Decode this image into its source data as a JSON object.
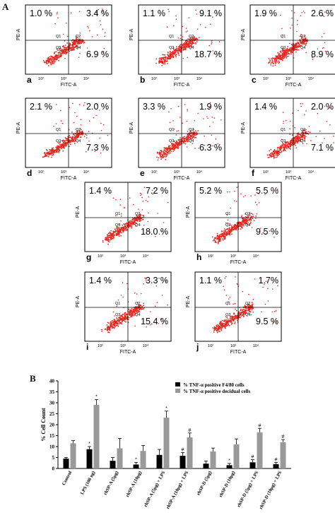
{
  "figure_labels": {
    "a": "A",
    "b": "B"
  },
  "flow_axes": {
    "x_label": "FITC-A",
    "y_label": "PE-A",
    "quadrants": [
      "Q1",
      "Q2",
      "Q3",
      "Q4"
    ]
  },
  "panels": [
    {
      "letter": "a",
      "q1": "1.0 %",
      "q2": "3.4 %",
      "q4": "6.9 %"
    },
    {
      "letter": "b",
      "q1": "1.1 %",
      "q2": "9.1 %",
      "q4": "18.7 %"
    },
    {
      "letter": "c",
      "q1": "1.9 %",
      "q2": "2.6 %",
      "q4": "8.9 %"
    },
    {
      "letter": "d",
      "q1": "2.1 %",
      "q2": "2.0 %",
      "q4": "7.3 %"
    },
    {
      "letter": "e",
      "q1": "3.3 %",
      "q2": "1.9 %",
      "q4": "6.3 %"
    },
    {
      "letter": "f",
      "q1": "1.4 %",
      "q2": "2.0 %",
      "q4": "7.1 %"
    },
    {
      "letter": "g",
      "q1": "1.4 %",
      "q2": "7.2 %",
      "q4": "18.0 %"
    },
    {
      "letter": "h",
      "q1": "5.2 %",
      "q2": "5.5 %",
      "q4": "9.5 %"
    },
    {
      "letter": "i",
      "q1": "1.4 %",
      "q2": "3.3 %",
      "q4": "15.4 %"
    },
    {
      "letter": "j",
      "q1": "1.1 %",
      "q2": "1.7%",
      "q4": "9.5 %"
    }
  ],
  "chart_data": {
    "type": "bar",
    "title": "",
    "xlabel": "",
    "ylabel": "% Cell Count",
    "ylim": [
      0,
      40
    ],
    "yticks": [
      0,
      5,
      10,
      15,
      20,
      25,
      30,
      35,
      40
    ],
    "categories": [
      "Control",
      "LPS (100 ng)",
      "rhSP-A (5µg)",
      "rhSP-A (10µg)",
      "rhSP-A (5µg) + LPS",
      "rhSP-A (10µg) + LPS",
      "rhSP-D (5µg)",
      "rhSP-D (10µg)",
      "rhSP-D (5µg) + LPS",
      "rhSP-D (10µg) + LPS"
    ],
    "series": [
      {
        "name": "% TNF-α positive F4/80 cells",
        "color": "#000000",
        "values": [
          4.5,
          8.8,
          3.5,
          1.8,
          6.2,
          5.8,
          2.2,
          1.5,
          2.8,
          2.0
        ],
        "errors": [
          0.5,
          1.2,
          1.5,
          1.0,
          2.5,
          1.5,
          1.2,
          0.8,
          1.2,
          0.8
        ],
        "annotations": [
          "",
          "*",
          "",
          "*",
          "",
          "#",
          "",
          "*",
          "#",
          "#"
        ]
      },
      {
        "name": "% TNF-α positive decidual cells",
        "color": "#999999",
        "values": [
          11.5,
          29.0,
          9.2,
          8.0,
          23.2,
          14.2,
          7.8,
          11.0,
          16.5,
          12.0
        ],
        "errors": [
          1.2,
          2.5,
          4.5,
          2.5,
          3.0,
          2.0,
          1.5,
          2.5,
          1.8,
          1.2
        ],
        "annotations": [
          "",
          "*",
          "",
          "",
          "*",
          "#",
          "",
          "",
          "#",
          "#"
        ]
      }
    ],
    "legend_position": "top-right"
  }
}
